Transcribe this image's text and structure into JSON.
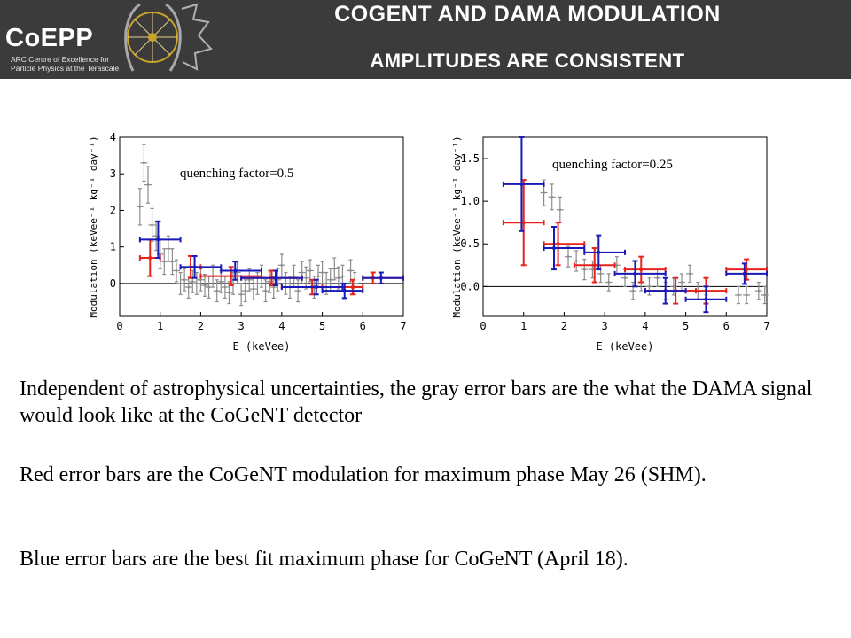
{
  "header": {
    "logo_word": "CoEPP",
    "logo_sub_1": "ARC Centre of Excellence for",
    "logo_sub_2": "Particle Physics at the Terascale",
    "title_line1": "CoGeNT and DAMA modulation",
    "title_line2": "amplitudes are consistent"
  },
  "body": {
    "p1": "Independent of astrophysical uncertainties, the gray error bars are the what the DAMA signal would look like at the CoGeNT detector",
    "p2": "Red error bars are the CoGeNT modulation for maximum phase May 26 (SHM).",
    "p3": "Blue error bars are the best fit maximum phase for CoGeNT (April 18)."
  },
  "colors": {
    "gray": "#8c8c8c",
    "red": "#e8231b",
    "blue": "#1a1ab8",
    "header_bg": "#3b3b3b"
  },
  "chart_data": [
    {
      "type": "scatter",
      "annotation": "quenching factor=0.5",
      "xlabel": "E (keVee)",
      "ylabel": "Modulation (keVee⁻¹ kg⁻¹ day⁻¹)",
      "xlim": [
        0,
        7
      ],
      "ylim": [
        -0.9,
        4
      ],
      "xticks": [
        "0",
        "1",
        "2",
        "3",
        "4",
        "5",
        "6",
        "7"
      ],
      "yticks": [
        "0",
        "1",
        "2",
        "3",
        "4"
      ],
      "grid": false,
      "series": [
        {
          "color": "gray",
          "points": [
            {
              "x": 0.5,
              "y": 2.1,
              "ey": 0.5
            },
            {
              "x": 0.6,
              "y": 3.3,
              "ey": 0.5
            },
            {
              "x": 0.7,
              "y": 2.7,
              "ey": 0.5
            },
            {
              "x": 0.8,
              "y": 1.6,
              "ey": 0.45
            },
            {
              "x": 0.9,
              "y": 1.3,
              "ey": 0.4
            },
            {
              "x": 1.0,
              "y": 0.8,
              "ey": 0.4
            },
            {
              "x": 1.1,
              "y": 0.6,
              "ey": 0.35
            },
            {
              "x": 1.2,
              "y": 0.95,
              "ey": 0.35
            },
            {
              "x": 1.3,
              "y": 0.6,
              "ey": 0.35
            },
            {
              "x": 1.4,
              "y": 0.35,
              "ey": 0.3
            },
            {
              "x": 1.5,
              "y": 0.0,
              "ey": 0.3
            },
            {
              "x": 1.6,
              "y": 0.1,
              "ey": 0.3
            },
            {
              "x": 1.7,
              "y": -0.1,
              "ey": 0.3
            },
            {
              "x": 1.8,
              "y": 0.05,
              "ey": 0.3
            },
            {
              "x": 1.9,
              "y": 0.0,
              "ey": 0.3
            },
            {
              "x": 2.0,
              "y": 0.1,
              "ey": 0.3
            },
            {
              "x": 2.1,
              "y": -0.05,
              "ey": 0.3
            },
            {
              "x": 2.2,
              "y": -0.1,
              "ey": 0.3
            },
            {
              "x": 2.3,
              "y": 0.2,
              "ey": 0.3
            },
            {
              "x": 2.4,
              "y": -0.2,
              "ey": 0.3
            },
            {
              "x": 2.5,
              "y": 0.05,
              "ey": 0.3
            },
            {
              "x": 2.6,
              "y": -0.1,
              "ey": 0.3
            },
            {
              "x": 2.7,
              "y": -0.25,
              "ey": 0.3
            },
            {
              "x": 2.8,
              "y": 0.0,
              "ey": 0.3
            },
            {
              "x": 2.9,
              "y": 0.3,
              "ey": 0.3
            },
            {
              "x": 3.0,
              "y": -0.3,
              "ey": 0.3
            },
            {
              "x": 3.1,
              "y": -0.2,
              "ey": 0.3
            },
            {
              "x": 3.2,
              "y": 0.1,
              "ey": 0.3
            },
            {
              "x": 3.3,
              "y": -0.15,
              "ey": 0.3
            },
            {
              "x": 3.4,
              "y": 0.0,
              "ey": 0.3
            },
            {
              "x": 3.5,
              "y": 0.2,
              "ey": 0.3
            },
            {
              "x": 3.6,
              "y": -0.2,
              "ey": 0.3
            },
            {
              "x": 3.7,
              "y": 0.05,
              "ey": 0.3
            },
            {
              "x": 3.8,
              "y": -0.1,
              "ey": 0.3
            },
            {
              "x": 3.9,
              "y": 0.1,
              "ey": 0.3
            },
            {
              "x": 4.0,
              "y": 0.5,
              "ey": 0.3
            },
            {
              "x": 4.1,
              "y": 0.0,
              "ey": 0.3
            },
            {
              "x": 4.2,
              "y": -0.1,
              "ey": 0.3
            },
            {
              "x": 4.3,
              "y": 0.2,
              "ey": 0.3
            },
            {
              "x": 4.4,
              "y": -0.2,
              "ey": 0.3
            },
            {
              "x": 4.5,
              "y": 0.3,
              "ey": 0.3
            },
            {
              "x": 4.6,
              "y": 0.15,
              "ey": 0.3
            },
            {
              "x": 4.7,
              "y": 0.35,
              "ey": 0.3
            },
            {
              "x": 4.8,
              "y": -0.1,
              "ey": 0.3
            },
            {
              "x": 4.9,
              "y": 0.2,
              "ey": 0.3
            },
            {
              "x": 5.0,
              "y": 0.3,
              "ey": 0.3
            },
            {
              "x": 5.1,
              "y": 0.0,
              "ey": 0.3
            },
            {
              "x": 5.2,
              "y": 0.1,
              "ey": 0.3
            },
            {
              "x": 5.3,
              "y": 0.4,
              "ey": 0.3
            },
            {
              "x": 5.4,
              "y": 0.15,
              "ey": 0.3
            },
            {
              "x": 5.5,
              "y": 0.2,
              "ey": 0.3
            },
            {
              "x": 5.7,
              "y": 0.35,
              "ey": 0.3
            },
            {
              "x": 5.8,
              "y": 0.0,
              "ey": 0.3
            }
          ]
        },
        {
          "color": "red",
          "points": [
            {
              "x": 0.75,
              "xlo": 0.5,
              "xhi": 1.0,
              "y": 0.7,
              "ey": 0.5
            },
            {
              "x": 1.75,
              "xlo": 1.5,
              "xhi": 2.0,
              "y": 0.45,
              "ey": 0.3
            },
            {
              "x": 2.75,
              "xlo": 2.0,
              "xhi": 3.5,
              "y": 0.2,
              "ey": 0.25
            },
            {
              "x": 3.75,
              "xlo": 3.0,
              "xhi": 4.5,
              "y": 0.15,
              "ey": 0.2
            },
            {
              "x": 4.75,
              "xlo": 4.0,
              "xhi": 5.5,
              "y": -0.1,
              "ey": 0.2
            },
            {
              "x": 5.75,
              "xlo": 5.0,
              "xhi": 6.0,
              "y": -0.1,
              "ey": 0.2
            },
            {
              "x": 6.25,
              "xlo": 6.0,
              "xhi": 7.0,
              "y": 0.15,
              "ey": 0.15
            }
          ]
        },
        {
          "color": "blue",
          "points": [
            {
              "x": 0.95,
              "xlo": 0.5,
              "xhi": 1.5,
              "y": 1.2,
              "ey": 0.5
            },
            {
              "x": 1.85,
              "xlo": 1.5,
              "xhi": 2.5,
              "y": 0.45,
              "ey": 0.3
            },
            {
              "x": 2.85,
              "xlo": 2.5,
              "xhi": 3.5,
              "y": 0.35,
              "ey": 0.25
            },
            {
              "x": 3.85,
              "xlo": 3.0,
              "xhi": 4.5,
              "y": 0.15,
              "ey": 0.2
            },
            {
              "x": 4.85,
              "xlo": 4.0,
              "xhi": 5.5,
              "y": -0.1,
              "ey": 0.2
            },
            {
              "x": 5.55,
              "xlo": 5.0,
              "xhi": 6.0,
              "y": -0.2,
              "ey": 0.2
            },
            {
              "x": 6.45,
              "xlo": 6.0,
              "xhi": 7.0,
              "y": 0.15,
              "ey": 0.15
            }
          ]
        }
      ]
    },
    {
      "type": "scatter",
      "annotation": "quenching factor=0.25",
      "xlabel": "E (keVee)",
      "ylabel": "Modulation (keVee⁻¹ kg⁻¹ day⁻¹)",
      "xlim": [
        0,
        7
      ],
      "ylim": [
        -0.35,
        1.75
      ],
      "xticks": [
        "0",
        "1",
        "2",
        "3",
        "4",
        "5",
        "6",
        "7"
      ],
      "yticks": [
        "0.0",
        "0.5",
        "1.0",
        "1.5"
      ],
      "grid": false,
      "series": [
        {
          "color": "gray",
          "points": [
            {
              "x": 1.5,
              "y": 1.1,
              "ey": 0.15
            },
            {
              "x": 1.7,
              "y": 1.05,
              "ey": 0.15
            },
            {
              "x": 1.9,
              "y": 0.9,
              "ey": 0.15
            },
            {
              "x": 2.1,
              "y": 0.35,
              "ey": 0.12
            },
            {
              "x": 2.3,
              "y": 0.3,
              "ey": 0.12
            },
            {
              "x": 2.5,
              "y": 0.2,
              "ey": 0.12
            },
            {
              "x": 2.7,
              "y": 0.2,
              "ey": 0.1
            },
            {
              "x": 2.9,
              "y": 0.15,
              "ey": 0.1
            },
            {
              "x": 3.1,
              "y": 0.05,
              "ey": 0.1
            },
            {
              "x": 3.3,
              "y": 0.25,
              "ey": 0.1
            },
            {
              "x": 3.5,
              "y": 0.1,
              "ey": 0.1
            },
            {
              "x": 3.7,
              "y": -0.05,
              "ey": 0.1
            },
            {
              "x": 3.9,
              "y": 0.05,
              "ey": 0.1
            },
            {
              "x": 4.1,
              "y": 0.0,
              "ey": 0.1
            },
            {
              "x": 4.3,
              "y": 0.1,
              "ey": 0.1
            },
            {
              "x": 4.5,
              "y": -0.05,
              "ey": 0.1
            },
            {
              "x": 4.7,
              "y": 0.0,
              "ey": 0.1
            },
            {
              "x": 4.9,
              "y": 0.05,
              "ey": 0.1
            },
            {
              "x": 5.1,
              "y": 0.15,
              "ey": 0.1
            },
            {
              "x": 5.3,
              "y": -0.05,
              "ey": 0.1
            },
            {
              "x": 5.5,
              "y": 0.0,
              "ey": 0.1
            },
            {
              "x": 6.3,
              "y": -0.1,
              "ey": 0.1
            },
            {
              "x": 6.5,
              "y": -0.1,
              "ey": 0.1
            },
            {
              "x": 6.8,
              "y": -0.05,
              "ey": 0.1
            },
            {
              "x": 6.95,
              "y": -0.1,
              "ey": 0.1
            }
          ]
        },
        {
          "color": "red",
          "points": [
            {
              "x": 1.0,
              "xlo": 0.5,
              "xhi": 1.5,
              "y": 0.75,
              "ey": 0.5
            },
            {
              "x": 1.85,
              "xlo": 1.5,
              "xhi": 2.5,
              "y": 0.5,
              "ey": 0.25
            },
            {
              "x": 2.75,
              "xlo": 2.25,
              "xhi": 3.25,
              "y": 0.25,
              "ey": 0.2
            },
            {
              "x": 3.9,
              "xlo": 3.5,
              "xhi": 4.5,
              "y": 0.2,
              "ey": 0.15
            },
            {
              "x": 4.75,
              "xlo": 4.0,
              "xhi": 5.25,
              "y": -0.05,
              "ey": 0.15
            },
            {
              "x": 5.5,
              "xlo": 5.0,
              "xhi": 6.0,
              "y": -0.05,
              "ey": 0.15
            },
            {
              "x": 6.5,
              "xlo": 6.0,
              "xhi": 7.0,
              "y": 0.2,
              "ey": 0.12
            }
          ]
        },
        {
          "color": "blue",
          "points": [
            {
              "x": 0.95,
              "xlo": 0.5,
              "xhi": 1.5,
              "y": 1.2,
              "ey": 0.55
            },
            {
              "x": 1.75,
              "xlo": 1.5,
              "xhi": 2.5,
              "y": 0.45,
              "ey": 0.25
            },
            {
              "x": 2.85,
              "xlo": 2.5,
              "xhi": 3.5,
              "y": 0.4,
              "ey": 0.2
            },
            {
              "x": 3.75,
              "xlo": 3.25,
              "xhi": 4.5,
              "y": 0.15,
              "ey": 0.15
            },
            {
              "x": 4.5,
              "xlo": 4.0,
              "xhi": 5.0,
              "y": -0.05,
              "ey": 0.15
            },
            {
              "x": 5.5,
              "xlo": 5.0,
              "xhi": 6.0,
              "y": -0.15,
              "ey": 0.15
            },
            {
              "x": 6.45,
              "xlo": 6.0,
              "xhi": 7.0,
              "y": 0.15,
              "ey": 0.12
            }
          ]
        }
      ]
    }
  ]
}
